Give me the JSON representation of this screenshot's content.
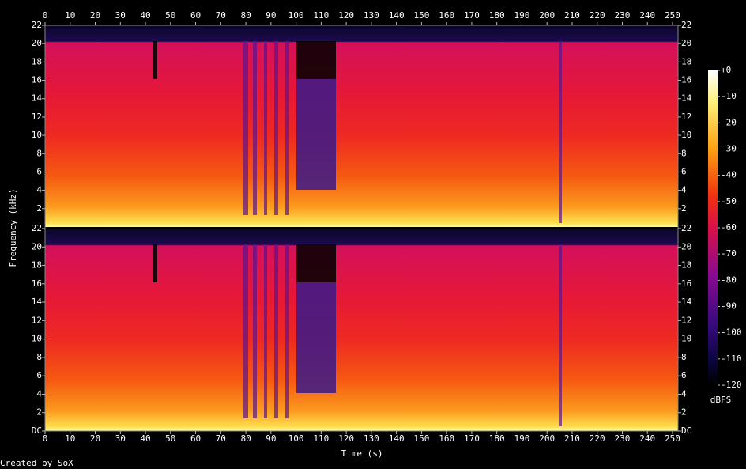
{
  "chart_data": {
    "type": "spectrogram",
    "xlabel": "Time (s)",
    "ylabel": "Frequency (kHz)",
    "credit": "Created by SoX",
    "xlim": [
      0,
      252.2
    ],
    "xticks": [
      0,
      10,
      20,
      30,
      40,
      50,
      60,
      70,
      80,
      90,
      100,
      110,
      120,
      130,
      140,
      150,
      160,
      170,
      180,
      190,
      200,
      210,
      220,
      230,
      240,
      250
    ],
    "ylim": [
      0,
      22
    ],
    "channels": [
      {
        "yticks": [
          2,
          4,
          6,
          8,
          10,
          12,
          14,
          16,
          18,
          20,
          22
        ]
      },
      {
        "yticks": [
          {
            "value": 0,
            "label": "DC"
          },
          2,
          4,
          6,
          8,
          10,
          12,
          14,
          16,
          18,
          20,
          22
        ]
      }
    ],
    "colorbar": {
      "label": "dBFS",
      "lim": [
        -120,
        0
      ],
      "ticks": [
        {
          "value": 0,
          "label": "+0"
        },
        -10,
        -20,
        -30,
        -40,
        -50,
        -60,
        -70,
        -80,
        -90,
        -100,
        -110,
        -120
      ]
    }
  }
}
